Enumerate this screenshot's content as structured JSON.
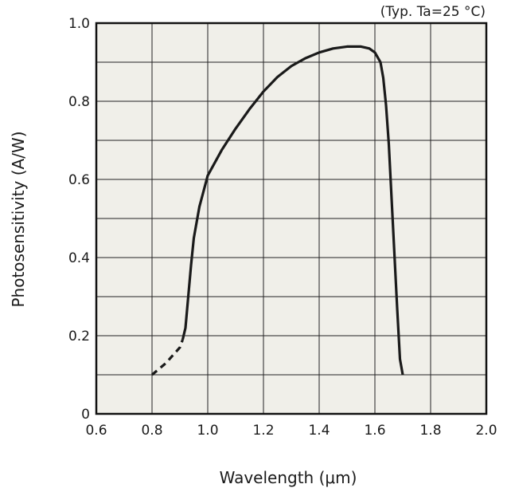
{
  "chart_data": {
    "type": "line",
    "annotation": "(Typ. Ta=25 °C)",
    "xlabel": "Wavelength (μm)",
    "ylabel": "Photosensitivity (A/W)",
    "xlim": [
      0.6,
      2.0
    ],
    "ylim": [
      0,
      1.0
    ],
    "x_ticks": [
      "0.6",
      "0.8",
      "1.0",
      "1.2",
      "1.4",
      "1.6",
      "1.8",
      "2.0"
    ],
    "y_ticks": [
      "0",
      "0.2",
      "0.4",
      "0.6",
      "0.8",
      "1.0"
    ],
    "x_tick_values": [
      0.6,
      0.8,
      1.0,
      1.2,
      1.4,
      1.6,
      1.8,
      2.0
    ],
    "y_tick_values": [
      0,
      0.2,
      0.4,
      0.6,
      0.8,
      1.0
    ],
    "grid_x": [
      0.6,
      0.8,
      1.0,
      1.2,
      1.4,
      1.6,
      1.8,
      2.0
    ],
    "grid_y": [
      0,
      0.1,
      0.2,
      0.3,
      0.4,
      0.5,
      0.6,
      0.7,
      0.8,
      0.9,
      1.0
    ],
    "grid": true,
    "plot_background": "#f0efe9",
    "line_color": "#1a1a1a",
    "series": [
      {
        "style": "dashed",
        "x": [
          0.8,
          0.85,
          0.9,
          0.91
        ],
        "y": [
          0.1,
          0.13,
          0.17,
          0.19
        ]
      },
      {
        "style": "solid",
        "x": [
          0.91,
          0.92,
          0.93,
          0.94,
          0.95,
          0.97,
          1.0,
          1.05,
          1.1,
          1.15,
          1.2,
          1.25,
          1.3,
          1.35,
          1.4,
          1.45,
          1.5,
          1.55,
          1.58,
          1.6,
          1.62,
          1.63,
          1.64,
          1.65,
          1.66,
          1.67,
          1.68,
          1.69,
          1.7
        ],
        "y": [
          0.19,
          0.22,
          0.3,
          0.38,
          0.45,
          0.53,
          0.61,
          0.675,
          0.73,
          0.78,
          0.825,
          0.862,
          0.89,
          0.91,
          0.925,
          0.935,
          0.94,
          0.94,
          0.935,
          0.925,
          0.9,
          0.86,
          0.79,
          0.69,
          0.55,
          0.41,
          0.27,
          0.14,
          0.1
        ]
      }
    ]
  }
}
